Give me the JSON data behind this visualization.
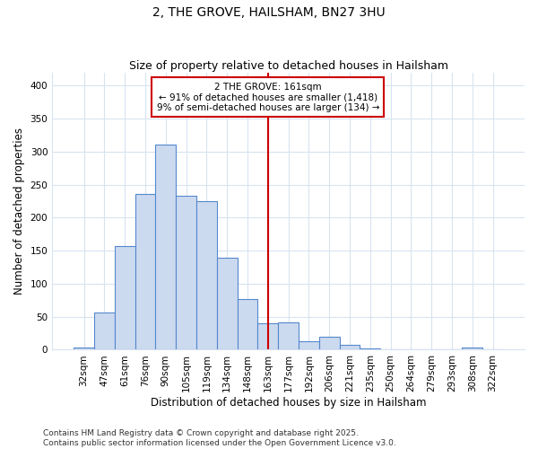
{
  "title": "2, THE GROVE, HAILSHAM, BN27 3HU",
  "subtitle": "Size of property relative to detached houses in Hailsham",
  "xlabel": "Distribution of detached houses by size in Hailsham",
  "ylabel": "Number of detached properties",
  "bar_labels": [
    "32sqm",
    "47sqm",
    "61sqm",
    "76sqm",
    "90sqm",
    "105sqm",
    "119sqm",
    "134sqm",
    "148sqm",
    "163sqm",
    "177sqm",
    "192sqm",
    "206sqm",
    "221sqm",
    "235sqm",
    "250sqm",
    "264sqm",
    "279sqm",
    "293sqm",
    "308sqm",
    "322sqm"
  ],
  "bar_values": [
    3,
    57,
    157,
    236,
    311,
    233,
    225,
    140,
    77,
    40,
    42,
    13,
    19,
    8,
    2,
    1,
    0,
    0,
    0,
    3,
    0
  ],
  "bar_color": "#ccdaf0",
  "bar_edge_color": "#5588cc",
  "background_color": "#ffffff",
  "grid_color": "#d8e4f0",
  "property_line_index": 9,
  "annotation_title": "2 THE GROVE: 161sqm",
  "annotation_line1": "← 91% of detached houses are smaller (1,418)",
  "annotation_line2": "9% of semi-detached houses are larger (134) →",
  "annotation_box_facecolor": "#ffffff",
  "annotation_box_edgecolor": "#cc0000",
  "vline_color": "#cc0000",
  "ylim": [
    0,
    420
  ],
  "yticks": [
    0,
    50,
    100,
    150,
    200,
    250,
    300,
    350,
    400
  ],
  "title_fontsize": 10,
  "subtitle_fontsize": 9,
  "axis_label_fontsize": 8.5,
  "tick_fontsize": 7.5,
  "annotation_fontsize": 7.5,
  "footer_fontsize": 6.5,
  "footer_line1": "Contains HM Land Registry data © Crown copyright and database right 2025.",
  "footer_line2": "Contains public sector information licensed under the Open Government Licence v3.0."
}
